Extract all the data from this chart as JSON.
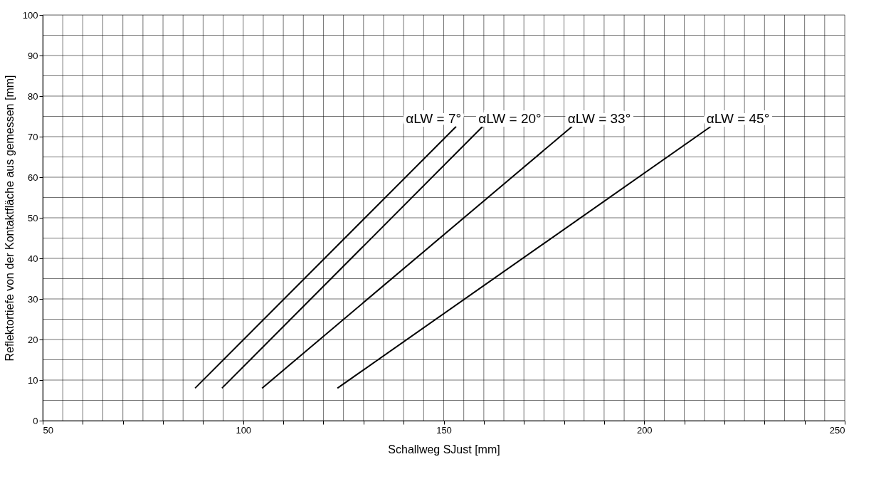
{
  "chart_data": {
    "type": "line",
    "xlabel": "Schallweg SJust [mm]",
    "ylabel": "Reflektortiefe von der Kontaktfläche aus gemessen [mm]",
    "series": [
      {
        "color": "#000000",
        "x": [
          88.0,
          153.1
        ],
        "values": [
          8,
          72.5
        ]
      },
      {
        "color": "#000000",
        "x": [
          94.7,
          159.7
        ],
        "values": [
          8,
          72.5
        ]
      },
      {
        "color": "#000000",
        "x": [
          104.7,
          182.0
        ],
        "values": [
          8,
          72.5
        ]
      },
      {
        "color": "#000000",
        "x": [
          123.5,
          216.6
        ],
        "values": [
          8,
          72.5
        ]
      }
    ],
    "annotations": [
      "αLW = 7°",
      "αLW = 20°",
      "αLW = 33°",
      "αLW = 45°"
    ],
    "xlim": [
      50,
      250
    ],
    "ylim": [
      0,
      100
    ],
    "xticks": [
      50,
      {
        "value": 55,
        "label": null
      },
      {
        "value": 60,
        "label": null
      },
      {
        "value": 65,
        "label": null
      },
      {
        "value": 70,
        "label": null
      },
      {
        "value": 75,
        "label": null
      },
      {
        "value": 80,
        "label": null
      },
      {
        "value": 85,
        "label": null
      },
      {
        "value": 90,
        "label": null
      },
      {
        "value": 95,
        "label": null
      },
      100,
      {
        "value": 105,
        "label": null
      },
      {
        "value": 110,
        "label": null
      },
      {
        "value": 115,
        "label": null
      },
      {
        "value": 120,
        "label": null
      },
      {
        "value": 125,
        "label": null
      },
      {
        "value": 130,
        "label": null
      },
      {
        "value": 135,
        "label": null
      },
      {
        "value": 140,
        "label": null
      },
      {
        "value": 145,
        "label": null
      },
      150,
      {
        "value": 155,
        "label": null
      },
      {
        "value": 160,
        "label": null
      },
      {
        "value": 165,
        "label": null
      },
      {
        "value": 170,
        "label": null
      },
      {
        "value": 175,
        "label": null
      },
      {
        "value": 180,
        "label": null
      },
      {
        "value": 185,
        "label": null
      },
      {
        "value": 190,
        "label": null
      },
      {
        "value": 195,
        "label": null
      },
      200,
      {
        "value": 205,
        "label": null
      },
      {
        "value": 210,
        "label": null
      },
      {
        "value": 215,
        "label": null
      },
      {
        "value": 220,
        "label": null
      },
      {
        "value": 225,
        "label": null
      },
      {
        "value": 230,
        "label": null
      },
      {
        "value": 235,
        "label": null
      },
      {
        "value": 240,
        "label": null
      },
      {
        "value": 245,
        "label": null
      },
      250
    ],
    "yticks": [
      0,
      {
        "value": 5,
        "label": null
      },
      10,
      {
        "value": 15,
        "label": null
      },
      20,
      {
        "value": 25,
        "label": null
      },
      30,
      {
        "value": 35,
        "label": null
      },
      40,
      {
        "value": 45,
        "label": null
      },
      50,
      {
        "value": 55,
        "label": null
      },
      60,
      {
        "value": 65,
        "label": null
      },
      70,
      {
        "value": 75,
        "label": null
      },
      80,
      {
        "value": 85,
        "label": null
      },
      90,
      {
        "value": 95,
        "label": null
      },
      100
    ],
    "grid": true,
    "line_style": "solid",
    "marker": "none"
  }
}
